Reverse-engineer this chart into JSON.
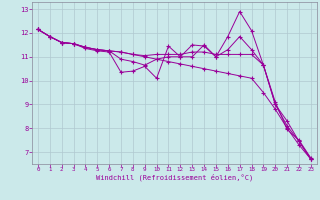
{
  "xlabel": "Windchill (Refroidissement éolien,°C)",
  "xlim": [
    -0.5,
    23.5
  ],
  "ylim": [
    6.5,
    13.3
  ],
  "xticks": [
    0,
    1,
    2,
    3,
    4,
    5,
    6,
    7,
    8,
    9,
    10,
    11,
    12,
    13,
    14,
    15,
    16,
    17,
    18,
    19,
    20,
    21,
    22,
    23
  ],
  "yticks": [
    7,
    8,
    9,
    10,
    11,
    12,
    13
  ],
  "bg_color": "#cbe9ea",
  "line_color": "#990099",
  "grid_color": "#b0c8d0",
  "lines": [
    {
      "x": [
        0,
        1,
        2,
        3,
        4,
        5,
        6,
        7,
        8,
        9,
        10,
        11,
        12,
        13,
        14,
        15,
        16,
        17,
        18,
        19,
        20,
        21,
        22,
        23
      ],
      "y": [
        12.15,
        11.85,
        11.6,
        11.55,
        11.35,
        11.25,
        11.2,
        10.35,
        10.4,
        10.6,
        10.1,
        11.45,
        11.0,
        11.0,
        11.5,
        11.0,
        11.85,
        12.9,
        12.1,
        10.65,
        9.0,
        8.3,
        7.45,
        6.7
      ]
    },
    {
      "x": [
        0,
        1,
        2,
        3,
        4,
        5,
        6,
        7,
        8,
        9,
        10,
        11,
        12,
        13,
        14,
        15,
        16,
        17,
        18,
        19,
        20,
        21,
        22,
        23
      ],
      "y": [
        12.15,
        11.85,
        11.6,
        11.55,
        11.4,
        11.3,
        11.25,
        10.9,
        10.8,
        10.65,
        10.9,
        11.0,
        11.0,
        11.5,
        11.45,
        11.0,
        11.3,
        11.85,
        11.3,
        10.65,
        9.1,
        7.95,
        7.5,
        6.75
      ]
    },
    {
      "x": [
        0,
        1,
        2,
        3,
        4,
        5,
        6,
        7,
        8,
        9,
        10,
        11,
        12,
        13,
        14,
        15,
        16,
        17,
        18,
        19,
        20,
        21,
        22,
        23
      ],
      "y": [
        12.15,
        11.85,
        11.6,
        11.55,
        11.4,
        11.3,
        11.25,
        11.2,
        11.1,
        11.05,
        11.1,
        11.1,
        11.1,
        11.2,
        11.2,
        11.1,
        11.1,
        11.1,
        11.1,
        10.65,
        9.0,
        8.1,
        7.45,
        6.7
      ]
    },
    {
      "x": [
        0,
        1,
        2,
        3,
        4,
        5,
        6,
        7,
        8,
        9,
        10,
        11,
        12,
        13,
        14,
        15,
        16,
        17,
        18,
        19,
        20,
        21,
        22,
        23
      ],
      "y": [
        12.15,
        11.85,
        11.6,
        11.55,
        11.4,
        11.3,
        11.25,
        11.2,
        11.1,
        11.0,
        10.9,
        10.8,
        10.7,
        10.6,
        10.5,
        10.4,
        10.3,
        10.2,
        10.1,
        9.5,
        8.8,
        8.0,
        7.3,
        6.7
      ]
    }
  ]
}
